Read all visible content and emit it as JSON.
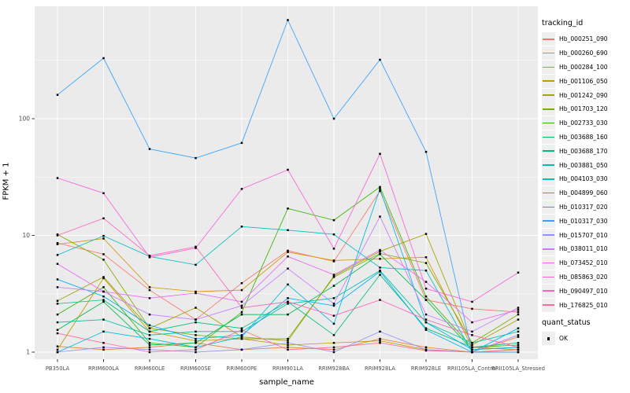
{
  "figure": {
    "panel_bg": "#EBEBEB",
    "grid_color": "#FFFFFF",
    "tick_color": "#333333",
    "tick_label_color": "#4D4D4D",
    "point_color": "#000000"
  },
  "legend": {
    "tracking_title": "tracking_id",
    "quant_title": "quant_status",
    "quant_items": [
      {
        "label": "OK",
        "marker": "black-square"
      }
    ]
  },
  "chart_data": {
    "type": "line",
    "title": "",
    "xlabel": "sample_name",
    "ylabel": "FPKM + 1",
    "y_scale": "log10",
    "y_ticks": [
      1,
      10,
      100
    ],
    "ylim": [
      0.87,
      950
    ],
    "grid": true,
    "legend_position": "right",
    "point_shape": "square",
    "categories": [
      "PB350LA",
      "RRIM600LA",
      "RRIM600LE",
      "RRIM600SE",
      "RRIM600PE",
      "RRIM901LA",
      "RRIM928BA",
      "RRIM928LA",
      "RRIM928LE",
      "RRII105LA_Control",
      "RRII105LA_Stressed"
    ],
    "series": [
      {
        "name": "Hb_000251_090",
        "color": "#F8766D",
        "values": [
          8.6,
          6.9,
          3.4,
          1.9,
          3.9,
          7.4,
          6.0,
          24,
          2.8,
          2.35,
          2.2
        ]
      },
      {
        "name": "Hb_000260_690",
        "color": "#EA8331",
        "values": [
          1.12,
          1.05,
          1.1,
          1.2,
          1.05,
          1.1,
          1.05,
          1.3,
          1.1,
          1.0,
          1.35
        ]
      },
      {
        "name": "Hb_000284_100",
        "color": "#D89000",
        "values": [
          8.4,
          9.4,
          3.6,
          3.3,
          3.4,
          7.2,
          6.1,
          6.3,
          6.5,
          1.1,
          1.05
        ]
      },
      {
        "name": "Hb_001106_050",
        "color": "#C09B00",
        "values": [
          1.05,
          4.3,
          1.5,
          1.25,
          1.3,
          1.15,
          1.2,
          1.25,
          1.05,
          1.0,
          1.05
        ]
      },
      {
        "name": "Hb_001242_090",
        "color": "#A3A500",
        "values": [
          2.75,
          4.4,
          1.6,
          2.4,
          1.35,
          1.25,
          4.5,
          7.3,
          10.3,
          1.15,
          1.9
        ]
      },
      {
        "name": "Hb_001703_120",
        "color": "#7CAE00",
        "values": [
          10.2,
          6.2,
          1.6,
          1.4,
          1.3,
          1.3,
          4.4,
          7.0,
          5.8,
          1.2,
          2.1
        ]
      },
      {
        "name": "Hb_002733_030",
        "color": "#39B600",
        "values": [
          2.1,
          3.6,
          1.2,
          1.1,
          2.2,
          17,
          13.5,
          26,
          3.0,
          1.1,
          1.15
        ]
      },
      {
        "name": "Hb_003688_160",
        "color": "#00BB4E",
        "values": [
          1.55,
          2.7,
          1.15,
          1.2,
          2.1,
          2.1,
          3.7,
          6.9,
          2.8,
          1.05,
          1.1
        ]
      },
      {
        "name": "Hb_003688_170",
        "color": "#00BF7D",
        "values": [
          2.6,
          2.8,
          1.5,
          1.8,
          1.6,
          2.7,
          1.4,
          4.6,
          1.6,
          1.1,
          1.2
        ]
      },
      {
        "name": "Hb_003881_050",
        "color": "#00C1A3",
        "values": [
          1.8,
          1.9,
          1.4,
          1.5,
          1.5,
          2.6,
          2.9,
          5.0,
          1.8,
          1.2,
          1.5
        ]
      },
      {
        "name": "Hb_004103_030",
        "color": "#00BFC4",
        "values": [
          6.8,
          9.9,
          6.6,
          5.6,
          11.9,
          11.1,
          10.2,
          5.3,
          5.0,
          1.0,
          1.0
        ]
      },
      {
        "name": "Hb_004899_060",
        "color": "#00BAE0",
        "values": [
          1.0,
          1.5,
          1.3,
          1.1,
          1.35,
          3.8,
          1.75,
          25,
          1.8,
          1.05,
          1.1
        ]
      },
      {
        "name": "Hb_010317_020",
        "color": "#00B0F6",
        "values": [
          4.2,
          3.0,
          1.7,
          1.3,
          1.4,
          2.9,
          2.5,
          4.9,
          1.55,
          1.0,
          1.6
        ]
      },
      {
        "name": "Hb_010317_030",
        "color": "#35A2FF",
        "values": [
          160,
          330,
          55,
          46,
          62,
          700,
          100,
          320,
          52,
          1.0,
          1.0
        ]
      },
      {
        "name": "Hb_015707_010",
        "color": "#9590FF",
        "values": [
          1.0,
          1.1,
          1.05,
          1.0,
          1.05,
          1.2,
          1.0,
          1.5,
          1.05,
          1.0,
          1.4
        ]
      },
      {
        "name": "Hb_038011_010",
        "color": "#C77CFF",
        "values": [
          3.6,
          3.3,
          2.1,
          1.9,
          2.5,
          5.2,
          2.6,
          14.5,
          2.1,
          1.5,
          2.4
        ]
      },
      {
        "name": "Hb_073452_010",
        "color": "#E76BF3",
        "values": [
          5.7,
          3.3,
          2.9,
          3.2,
          2.7,
          6.6,
          4.6,
          7.5,
          4.0,
          1.8,
          2.3
        ]
      },
      {
        "name": "Hb_085863_020",
        "color": "#FA62DB",
        "values": [
          31,
          23,
          6.5,
          7.8,
          25,
          36.5,
          7.7,
          50,
          3.5,
          2.7,
          4.8
        ]
      },
      {
        "name": "Hb_090497_010",
        "color": "#FF62BC",
        "values": [
          10,
          14,
          6.7,
          8.0,
          2.4,
          2.7,
          2.05,
          2.8,
          1.9,
          1.4,
          1.1
        ]
      },
      {
        "name": "Hb_176825_010",
        "color": "#FF6A98",
        "values": [
          1.45,
          1.2,
          1.0,
          1.05,
          1.55,
          1.05,
          1.1,
          1.2,
          1.03,
          1.0,
          1.05
        ]
      }
    ]
  }
}
